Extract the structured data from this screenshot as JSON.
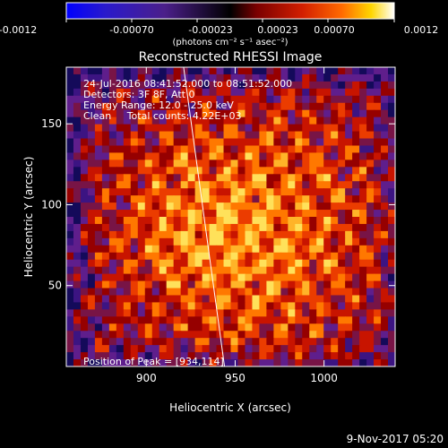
{
  "colorbar": {
    "tick_labels": [
      "-0.0012",
      "-0.00070",
      "-0.00023",
      "0.00023",
      "0.00070",
      "0.0012"
    ],
    "units_label": "(photons cm⁻² s⁻¹ asec⁻²)",
    "range": [
      -0.0012,
      0.0012
    ],
    "colors": [
      "#0000ff",
      "#2a1acb",
      "#4b1f8a",
      "#000000",
      "#7a0000",
      "#d31f00",
      "#ff6a00",
      "#ffd600",
      "#ffffff"
    ]
  },
  "footer": {
    "timestamp": "9-Nov-2017 05:20"
  },
  "chart_data": {
    "type": "heatmap",
    "title": "Reconstructed RHESSI Image",
    "xlabel": "Heliocentric X (arcsec)",
    "ylabel": "Heliocentric Y (arcsec)",
    "x_ticks": [
      900,
      950,
      1000
    ],
    "y_ticks": [
      50,
      100,
      150
    ],
    "xlim": [
      855,
      1040
    ],
    "ylim": [
      0,
      185
    ],
    "info_lines": [
      "24-Jul-2016 08:41:52.000 to 08:51:52.000",
      "Detectors: 3F 8F, Att 0",
      "Energy Range: 12.0 - 25.0 keV",
      "Clean     Total counts: 4.22E+03"
    ],
    "peak_label": "Position of Peak = [934,114]",
    "peak": [
      934,
      114
    ],
    "limb_line": [
      [
        921,
        185
      ],
      [
        944,
        0
      ]
    ],
    "grid": false
  }
}
